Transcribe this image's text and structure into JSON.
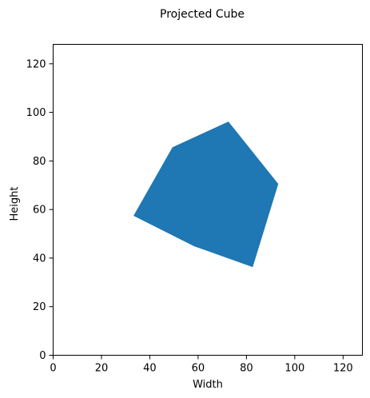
{
  "chart_data": {
    "type": "area",
    "title": "Projected Cube",
    "xlabel": "Width",
    "ylabel": "Height",
    "xlim": [
      0,
      128
    ],
    "ylim": [
      0,
      128
    ],
    "x_ticks": [
      0,
      20,
      40,
      60,
      80,
      100,
      120
    ],
    "y_ticks": [
      0,
      20,
      40,
      60,
      80,
      100,
      120
    ],
    "x_tick_labels": [
      "0",
      "20",
      "40",
      "60",
      "80",
      "100",
      "120"
    ],
    "y_tick_labels": [
      "0",
      "20",
      "40",
      "60",
      "80",
      "100",
      "120"
    ],
    "grid": false,
    "series": [
      {
        "color": "#1f77b4",
        "polygon": [
          [
            49.5,
            85.5
          ],
          [
            72.5,
            96.0
          ],
          [
            93.0,
            70.5
          ],
          [
            82.5,
            36.5
          ],
          [
            58.5,
            45.0
          ],
          [
            33.5,
            57.5
          ]
        ]
      }
    ]
  }
}
